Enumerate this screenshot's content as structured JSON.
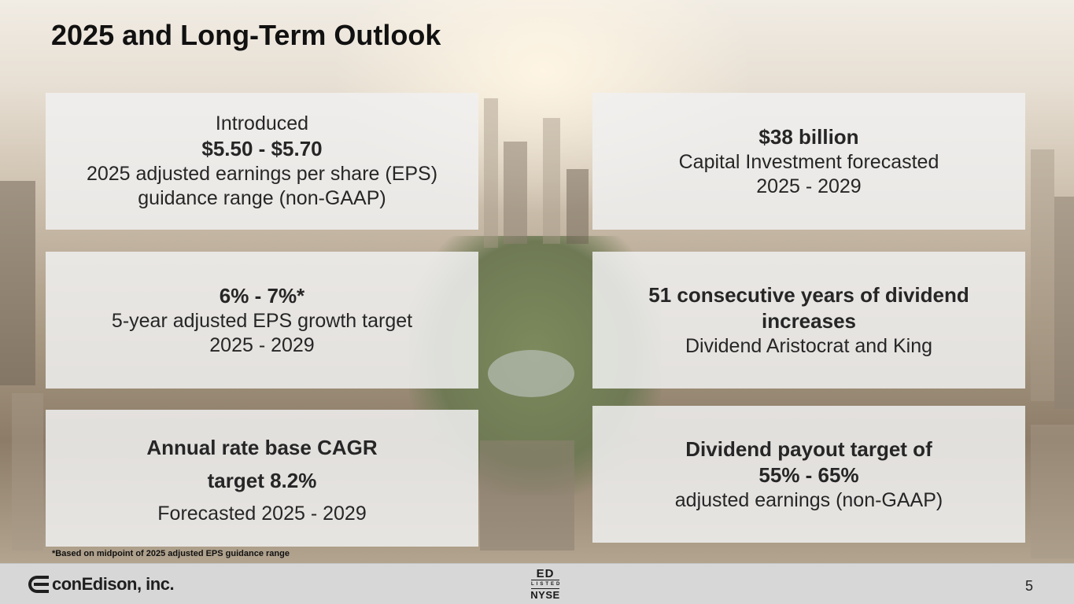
{
  "title": "2025 and Long-Term Outlook",
  "cards": {
    "eps_guidance": {
      "intro": "Introduced",
      "value": "$5.50 - $5.70",
      "line1": "2025 adjusted earnings per share (EPS)",
      "line2": "guidance range (non-GAAP)"
    },
    "capital": {
      "value": "$38 billion",
      "line1": "Capital Investment forecasted",
      "line2": "2025 - 2029"
    },
    "eps_growth": {
      "value": "6% - 7%*",
      "line1": "5-year adjusted EPS growth target",
      "line2": "2025 - 2029"
    },
    "dividend_years": {
      "line1": "51 consecutive years of dividend",
      "line2": "increases",
      "sub": "Dividend Aristocrat and King"
    },
    "rate_base": {
      "line1": "Annual rate base CAGR",
      "line2": "target 8.2%",
      "sub": "Forecasted 2025 - 2029"
    },
    "payout": {
      "line1": "Dividend payout target of",
      "line2": "55% - 65%",
      "sub": "adjusted earnings (non-GAAP)"
    }
  },
  "footnote": "*Based on midpoint of 2025 adjusted EPS guidance range",
  "footer": {
    "company": "conEdison, inc.",
    "listing": {
      "ticker": "ED",
      "listed": "LISTED",
      "exchange": "NYSE"
    },
    "page_number": "5"
  }
}
